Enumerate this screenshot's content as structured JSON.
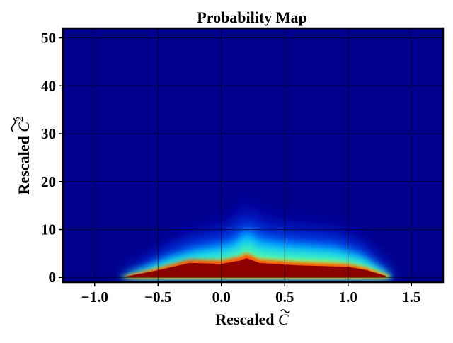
{
  "chart_data": {
    "type": "heatmap",
    "title": "Probability Map",
    "xlabel": {
      "prefix": "Rescaled ",
      "symbol": "C"
    },
    "ylabel": {
      "prefix": "Rescaled ",
      "symbol": "C",
      "superscript": "2"
    },
    "xlim": [
      -1.25,
      1.75
    ],
    "ylim": [
      -1,
      52
    ],
    "xticks": [
      -1.0,
      -0.5,
      0.0,
      0.5,
      1.0,
      1.5
    ],
    "xtick_labels": [
      "−1.0",
      "−0.5",
      "0.0",
      "0.5",
      "1.0",
      "1.5"
    ],
    "yticks": [
      0,
      10,
      20,
      30,
      40,
      50
    ],
    "ytick_labels": [
      "0",
      "10",
      "20",
      "30",
      "40",
      "50"
    ],
    "grid": true,
    "colormap": "jet",
    "background_color": "#00008c",
    "density_envelope": {
      "x": [
        -0.8,
        -0.6,
        -0.4,
        -0.2,
        0.0,
        0.1,
        0.2,
        0.3,
        0.5,
        0.7,
        0.9,
        1.1,
        1.25,
        1.35
      ],
      "y": [
        0.0,
        2.5,
        5.5,
        7.5,
        8.5,
        9.5,
        12.5,
        10.0,
        9.0,
        8.5,
        8.0,
        6.0,
        2.5,
        0.0
      ]
    },
    "peak_band": {
      "x": [
        -0.75,
        -0.5,
        -0.25,
        0.0,
        0.15,
        0.2,
        0.3,
        0.6,
        1.0,
        1.15,
        1.3
      ],
      "y": [
        0.2,
        1.5,
        3.0,
        2.8,
        3.5,
        4.0,
        3.0,
        2.5,
        2.2,
        1.5,
        0.3
      ]
    },
    "ridge": {
      "x": 0.2,
      "y_top": 15
    }
  }
}
